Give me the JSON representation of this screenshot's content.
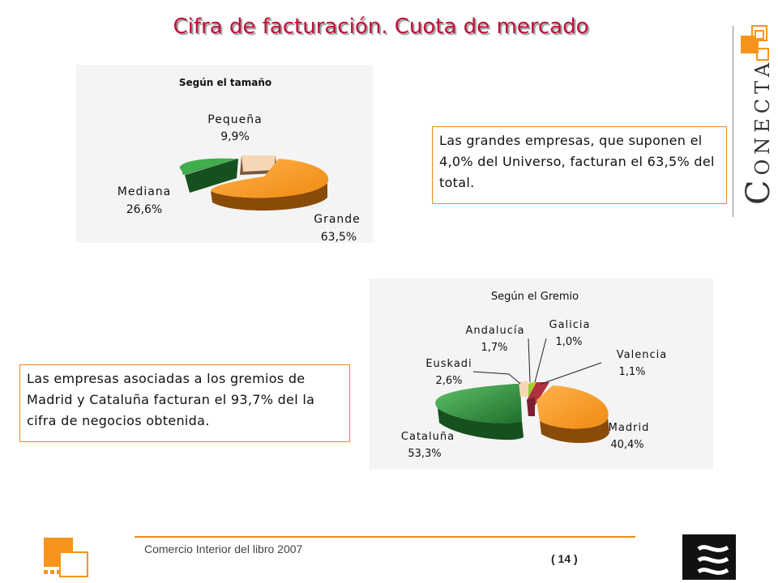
{
  "title": "Cifra de facturación. Cuota de mercado",
  "chart_data": [
    {
      "type": "pie",
      "title": "Según el tamaño",
      "slices": [
        {
          "label": "Grande",
          "value_label": "63,5%",
          "value": 63.5,
          "color": "#f7941d"
        },
        {
          "label": "Mediana",
          "value_label": "26,6%",
          "value": 26.6,
          "color": "#2e8b3a"
        },
        {
          "label": "Pequeña",
          "value_label": "9,9%",
          "value": 9.9,
          "color": "#f6d7b5"
        }
      ]
    },
    {
      "type": "pie",
      "title": "Según el Gremio",
      "slices": [
        {
          "label": "Madrid",
          "value_label": "40,4%",
          "value": 40.4,
          "color": "#f7941d"
        },
        {
          "label": "Cataluña",
          "value_label": "53,3%",
          "value": 53.3,
          "color": "#2e8b3a"
        },
        {
          "label": "Euskadi",
          "value_label": "2,6%",
          "value": 2.6,
          "color": "#f6d7b5"
        },
        {
          "label": "Andalucía",
          "value_label": "1,7%",
          "value": 1.7,
          "color": "#9acd32"
        },
        {
          "label": "Galicia",
          "value_label": "1,0%",
          "value": 1.0,
          "color": "#e5c100"
        },
        {
          "label": "Valencia",
          "value_label": "1,1%",
          "value": 1.1,
          "color": "#b03040"
        }
      ]
    }
  ],
  "callouts": {
    "size": "Las grandes empresas, que suponen el 4,0% del Universo, facturan el 63,5% del total.",
    "guild": "Las empresas asociadas a los gremios de Madrid y Cataluña facturan el 93,7% del la cifra de negocios obtenida."
  },
  "brand": {
    "initial": "C",
    "rest": "ONECTA",
    "accent": "#f7941d"
  },
  "footer": {
    "text": "Comercio Interior del libro 2007",
    "page": "( 14 )"
  }
}
